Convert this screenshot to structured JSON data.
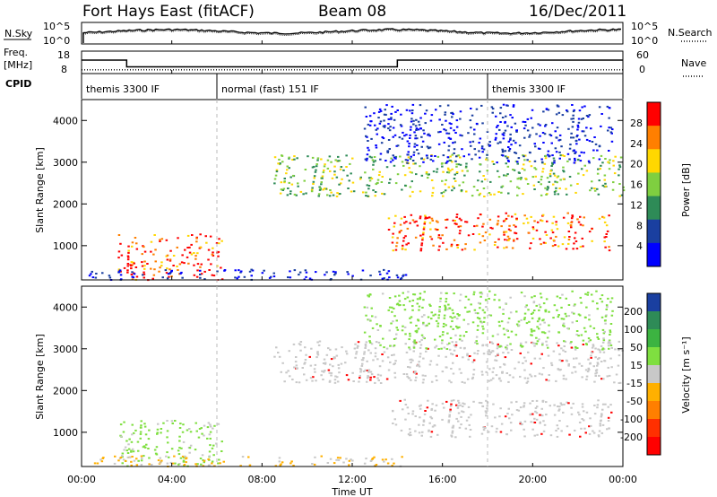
{
  "header": {
    "title": "Fort Hays East (fitACF)",
    "beam": "Beam 08",
    "date": "16/Dec/2011"
  },
  "noise_panel": {
    "left_label": "N.Sky",
    "right_label": "N.Search",
    "left_ticks": [
      "10^5",
      "10^0"
    ],
    "right_ticks": [
      "10^5",
      "10^0"
    ]
  },
  "freq_panel": {
    "left_label_1": "Freq.",
    "left_label_2": "[MHz]",
    "right_label": "Nave",
    "left_ticks": [
      "18",
      "8"
    ],
    "right_ticks": [
      "60",
      "0"
    ]
  },
  "cpid": {
    "label": "CPID",
    "segments": [
      {
        "text": "themis 3300 IF",
        "start_hour": 0
      },
      {
        "text": "normal (fast) 151 IF",
        "start_hour": 6
      },
      {
        "text": "themis 3300 IF",
        "start_hour": 18
      }
    ]
  },
  "panels": {
    "power": {
      "ylabel": "Slant Range [km]",
      "cbar_label": "Power [dB]",
      "cbar_ticks": [
        "28",
        "24",
        "20",
        "16",
        "12",
        "8",
        "4"
      ],
      "cbar_colors": [
        "#ff0000",
        "#ff7f00",
        "#ffd700",
        "#7fcf40",
        "#2e8b57",
        "#1a3fa0",
        "#0000ff"
      ]
    },
    "velocity": {
      "ylabel": "Slant Range [km]",
      "cbar_label": "Velocity [m s⁻¹]",
      "cbar_ticks": [
        "200",
        "100",
        "50",
        "15",
        "-15",
        "-50",
        "-100",
        "-200"
      ],
      "cbar_colors": [
        "#1a3fa0",
        "#2e8b57",
        "#3cb341",
        "#7fdf40",
        "#c8c8c8",
        "#ffb000",
        "#ff7f00",
        "#ff3000",
        "#ff0000"
      ]
    }
  },
  "chart_data": {
    "type": "heatmap",
    "xlabel": "Time UT",
    "x_ticks": [
      "00:00",
      "04:00",
      "08:00",
      "12:00",
      "16:00",
      "20:00",
      "00:00"
    ],
    "y_ticks": [
      "1000",
      "2000",
      "3000",
      "4000"
    ],
    "xlim_hours": [
      0,
      24
    ],
    "ylim_km": [
      180,
      4500
    ],
    "nave_value": 10,
    "freq_steps_mhz": [
      {
        "from_hour": 0,
        "to_hour": 2,
        "freq": 14
      },
      {
        "from_hour": 2,
        "to_hour": 14,
        "freq": 11
      },
      {
        "from_hour": 14,
        "to_hour": 24,
        "freq": 14
      }
    ],
    "echo_regions": [
      {
        "name": "near-range-evening",
        "t0": 1.6,
        "t1": 6.2,
        "r0": 200,
        "r1": 1300,
        "power": "high",
        "velocity": "15"
      },
      {
        "name": "ground-scatter-low",
        "t0": 0.2,
        "t1": 14.5,
        "r0": 200,
        "r1": 450,
        "power": "low",
        "velocity": "-50"
      },
      {
        "name": "mid-band",
        "t0": 8.5,
        "t1": 24,
        "r0": 2200,
        "r1": 3200,
        "power": "medium",
        "velocity": "-15"
      },
      {
        "name": "main-band",
        "t0": 13.5,
        "t1": 23.5,
        "r0": 900,
        "r1": 1800,
        "power": "high",
        "velocity": "-15"
      },
      {
        "name": "far-range",
        "t0": 12.5,
        "t1": 23.5,
        "r0": 3000,
        "r1": 4400,
        "power": "low",
        "velocity": "15"
      }
    ]
  }
}
